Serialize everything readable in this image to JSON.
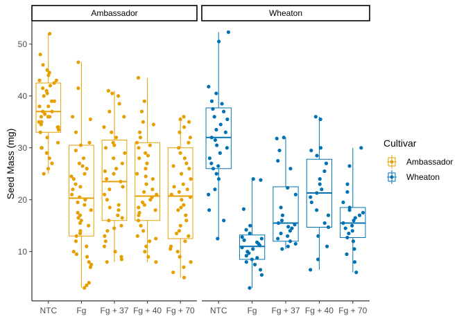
{
  "chart_data": {
    "type": "boxplot-jitter",
    "ylabel": "Seed Mass (mg)",
    "xlabel": "",
    "ylim": [
      0.5,
      54.5
    ],
    "yticks": [
      10,
      20,
      30,
      40,
      50
    ],
    "categories": [
      "NTC",
      "Fg",
      "Fg + 37",
      "Fg + 40",
      "Fg + 70"
    ],
    "grid": false,
    "legend": {
      "title": "Cultivar",
      "position": "right",
      "entries": [
        {
          "name": "Ambassador",
          "color": "#E69F00"
        },
        {
          "name": "Wheaton",
          "color": "#0072B2"
        }
      ]
    },
    "panels": [
      {
        "title": "Ambassador",
        "color": "#E69F00",
        "boxes": [
          {
            "category": "NTC",
            "min": 25.0,
            "q1": 33.0,
            "median": 37.0,
            "q3": 42.5,
            "max": 52.0
          },
          {
            "category": "Fg",
            "min": 3.0,
            "q1": 13.0,
            "median": 20.3,
            "q3": 30.5,
            "max": 46.5
          },
          {
            "category": "Fg + 37",
            "min": 8.0,
            "q1": 16.0,
            "median": 23.5,
            "q3": 31.5,
            "max": 41.0
          },
          {
            "category": "Fg + 40",
            "min": 8.0,
            "q1": 16.0,
            "median": 20.7,
            "q3": 31.0,
            "max": 43.5
          },
          {
            "category": "Fg + 70",
            "min": 5.0,
            "q1": 12.5,
            "median": 20.7,
            "q3": 30.0,
            "max": 36.0
          }
        ],
        "points": [
          [
            26.0,
            52.0,
            48.0,
            46.0,
            45.0,
            44.0,
            43.0,
            43.0,
            42.0,
            41.0,
            40.0,
            39.0,
            39.0,
            38.0,
            38.0,
            37.0,
            37.0,
            36.0,
            36.0,
            36.0,
            35.0,
            35.0,
            34.0,
            34.0,
            33.0,
            32.0,
            31.0,
            30.0,
            29.0,
            28.0,
            27.0,
            25.0,
            30.0,
            33.5,
            40.5,
            41.5,
            44.5,
            36.5,
            34.5,
            42.5
          ],
          [
            46.5,
            41.5,
            36.0,
            35.5,
            33.0,
            31.0,
            30.5,
            29.5,
            28.0,
            27.0,
            26.0,
            25.0,
            24.0,
            23.0,
            22.5,
            22.0,
            21.0,
            20.5,
            20.0,
            19.0,
            18.0,
            17.5,
            17.0,
            16.0,
            15.5,
            15.0,
            14.0,
            13.5,
            13.0,
            12.0,
            11.0,
            10.0,
            9.5,
            9.0,
            8.0,
            7.5,
            7.0,
            4.0,
            3.5,
            3.0,
            26.5,
            24.5,
            19.5,
            16.5
          ],
          [
            41.0,
            40.5,
            40.0,
            38.5,
            37.0,
            36.0,
            34.0,
            33.0,
            32.0,
            31.0,
            30.0,
            29.0,
            28.0,
            27.0,
            26.0,
            25.0,
            24.0,
            23.5,
            22.5,
            22.0,
            21.0,
            20.0,
            19.0,
            18.0,
            17.0,
            16.5,
            16.0,
            15.0,
            14.0,
            13.0,
            12.0,
            11.0,
            10.0,
            9.0,
            8.5,
            8.0,
            30.5,
            25.5,
            18.5,
            14.5
          ],
          [
            43.5,
            39.0,
            37.0,
            35.0,
            34.5,
            33.0,
            32.0,
            31.0,
            30.5,
            30.0,
            29.0,
            28.0,
            27.0,
            26.0,
            25.0,
            24.0,
            23.0,
            22.0,
            21.5,
            21.0,
            20.5,
            20.0,
            19.5,
            19.0,
            18.5,
            18.0,
            17.0,
            16.0,
            15.0,
            14.0,
            13.0,
            12.0,
            11.0,
            10.0,
            9.0,
            8.0,
            28.5,
            24.5,
            17.5,
            12.5
          ],
          [
            36.0,
            35.5,
            35.0,
            34.0,
            33.0,
            32.0,
            31.0,
            30.0,
            29.0,
            28.0,
            27.0,
            26.0,
            25.0,
            24.0,
            23.0,
            22.0,
            21.5,
            21.0,
            20.5,
            20.0,
            19.0,
            18.0,
            17.0,
            16.0,
            15.0,
            14.0,
            13.0,
            12.0,
            11.0,
            10.0,
            9.0,
            8.0,
            7.0,
            6.0,
            5.0,
            26.5,
            22.5,
            18.5,
            13.5,
            10.5
          ]
        ]
      },
      {
        "title": "Wheaton",
        "color": "#0072B2",
        "boxes": [
          {
            "category": "NTC",
            "min": 12.5,
            "q1": 26.0,
            "median": 32.0,
            "q3": 37.7,
            "max": 52.3
          },
          {
            "category": "Fg",
            "min": 3.0,
            "q1": 8.5,
            "median": 11.0,
            "q3": 13.2,
            "max": 24.0
          },
          {
            "category": "Fg + 37",
            "min": 10.5,
            "q1": 12.0,
            "median": 15.5,
            "q3": 22.5,
            "max": 32.0
          },
          {
            "category": "Fg + 40",
            "min": 6.5,
            "q1": 14.7,
            "median": 21.3,
            "q3": 27.8,
            "max": 36.0
          },
          {
            "category": "Fg + 70",
            "min": 6.0,
            "q1": 12.7,
            "median": 15.5,
            "q3": 18.5,
            "max": 30.0
          }
        ],
        "points": [
          [
            52.3,
            50.5,
            41.8,
            40.5,
            39.0,
            38.5,
            37.5,
            37.0,
            36.0,
            35.5,
            34.5,
            33.5,
            33.0,
            32.0,
            31.5,
            30.5,
            30.0,
            29.0,
            28.0,
            27.0,
            26.5,
            26.0,
            25.0,
            24.0,
            22.0,
            21.0,
            18.0,
            16.0,
            12.5
          ],
          [
            24.0,
            23.8,
            18.2,
            15.0,
            14.2,
            13.5,
            12.8,
            12.2,
            11.8,
            11.2,
            10.8,
            10.5,
            10.0,
            9.7,
            9.2,
            8.8,
            8.5,
            8.0,
            7.5,
            6.5,
            5.5,
            3.0,
            12.5,
            11.5
          ],
          [
            32.0,
            31.8,
            29.5,
            27.5,
            26.0,
            22.3,
            21.0,
            18.5,
            17.0,
            16.0,
            15.5,
            15.2,
            14.8,
            14.5,
            14.0,
            13.5,
            13.0,
            12.5,
            12.0,
            11.5,
            11.0,
            10.5
          ],
          [
            36.0,
            35.5,
            30.0,
            29.5,
            28.5,
            27.0,
            25.5,
            24.0,
            23.0,
            22.0,
            21.3,
            20.5,
            19.5,
            18.0,
            17.0,
            15.5,
            14.7,
            13.0,
            11.0,
            8.5,
            6.5
          ],
          [
            30.0,
            26.5,
            23.0,
            21.5,
            19.5,
            18.5,
            18.0,
            17.5,
            17.0,
            16.5,
            16.0,
            15.5,
            15.0,
            14.5,
            14.0,
            13.5,
            12.7,
            12.0,
            10.5,
            9.5,
            8.0,
            6.0
          ]
        ]
      }
    ]
  }
}
